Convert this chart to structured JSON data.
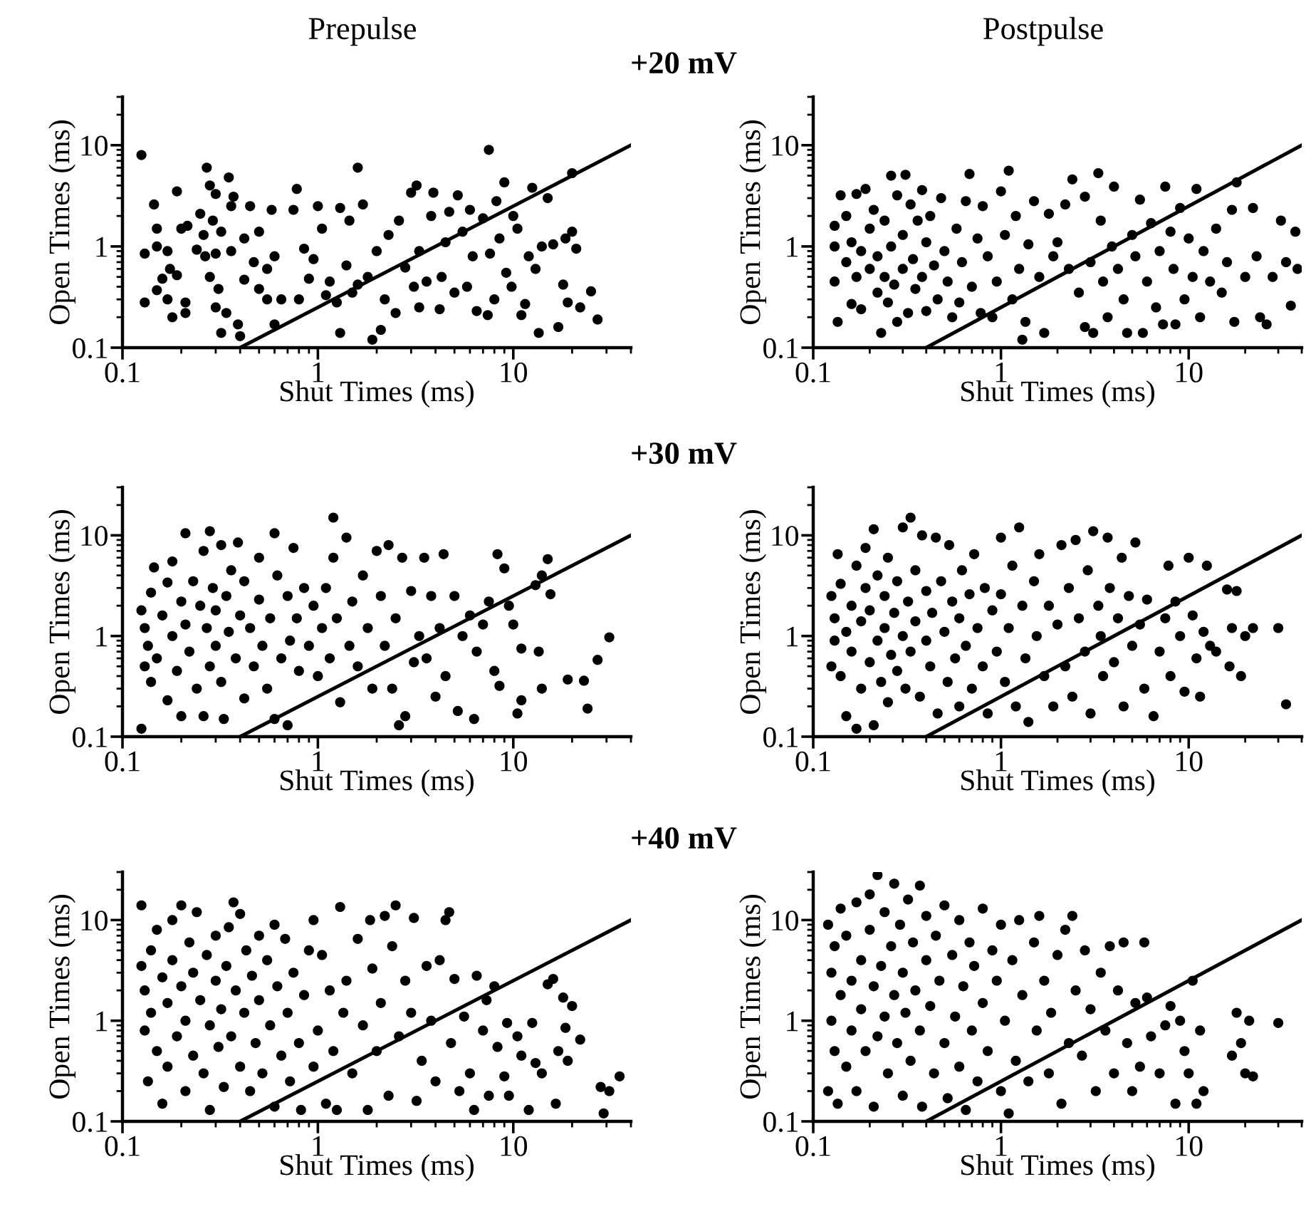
{
  "chart_data": [
    {
      "type": "scatter",
      "title": "Prepulse",
      "subtitle": "+20 mV",
      "xlabel": "Shut Times (ms)",
      "ylabel": "Open Times (ms)",
      "log": "xy",
      "xlim": [
        0.1,
        40
      ],
      "ylim": [
        0.1,
        30
      ],
      "xticks": [
        0.1,
        1,
        10
      ],
      "yticks": [
        0.1,
        1,
        10
      ],
      "series": [
        {
          "marker": "circle",
          "color": "#000000",
          "x": [
            0.125,
            0.13,
            0.13,
            0.145,
            0.15,
            0.15,
            0.15,
            0.16,
            0.17,
            0.17,
            0.175,
            0.18,
            0.19,
            0.19,
            0.2,
            0.21,
            0.21,
            0.215,
            0.24,
            0.25,
            0.26,
            0.265,
            0.27,
            0.28,
            0.28,
            0.29,
            0.3,
            0.3,
            0.3,
            0.31,
            0.32,
            0.32,
            0.34,
            0.35,
            0.36,
            0.36,
            0.37,
            0.39,
            0.4,
            0.42,
            0.42,
            0.45,
            0.47,
            0.5,
            0.5,
            0.55,
            0.55,
            0.58,
            0.6,
            0.6,
            0.65,
            0.75,
            0.78,
            0.8,
            0.85,
            0.9,
            0.95,
            1.0,
            1.05,
            1.1,
            1.15,
            1.25,
            1.3,
            1.3,
            1.4,
            1.45,
            1.5,
            1.6,
            1.6,
            1.7,
            1.8,
            1.9,
            2.0,
            2.1,
            2.2,
            2.3,
            2.5,
            2.6,
            2.8,
            3.0,
            3.1,
            3.2,
            3.3,
            3.3,
            3.6,
            3.8,
            3.9,
            4.2,
            4.3,
            4.5,
            4.7,
            5,
            5.2,
            5.5,
            5.8,
            6,
            6.2,
            6.5,
            7,
            7.4,
            7.5,
            7.6,
            8,
            8.2,
            8.5,
            9,
            9.2,
            9.8,
            10,
            10.5,
            11,
            11.5,
            12,
            12.5,
            13,
            13.5,
            14,
            15,
            16,
            17,
            18,
            18.5,
            19,
            20,
            20,
            21,
            22,
            25,
            27
          ],
          "values": [
            8,
            0.85,
            0.28,
            2.6,
            1.5,
            1.0,
            0.37,
            0.48,
            0.3,
            0.9,
            0.6,
            0.2,
            0.52,
            3.5,
            1.5,
            0.22,
            0.28,
            1.6,
            0.93,
            2.1,
            1.3,
            0.8,
            6,
            0.5,
            4,
            1.8,
            0.25,
            3.3,
            0.85,
            0.38,
            1.4,
            0.14,
            0.22,
            4.8,
            0.9,
            2.5,
            3.1,
            0.17,
            0.13,
            0.47,
            1.2,
            2.5,
            0.7,
            0.38,
            1.4,
            0.6,
            0.3,
            2.3,
            0.17,
            0.8,
            0.3,
            2.3,
            3.7,
            0.3,
            0.95,
            0.48,
            0.75,
            2.5,
            1.5,
            0.33,
            0.45,
            0.28,
            0.14,
            2.4,
            0.65,
            1.8,
            0.35,
            6,
            0.42,
            2.6,
            0.5,
            0.12,
            0.9,
            0.15,
            0.3,
            1.3,
            0.22,
            1.8,
            0.62,
            3.4,
            0.4,
            4,
            0.9,
            0.25,
            0.45,
            2,
            3.4,
            0.24,
            0.5,
            1.1,
            2.2,
            0.35,
            3.2,
            1.4,
            0.4,
            2.3,
            0.8,
            0.23,
            1.9,
            0.21,
            9,
            0.85,
            0.3,
            2.8,
            1.2,
            4.3,
            0.55,
            0.4,
            2,
            1.5,
            0.21,
            0.27,
            0.8,
            3.8,
            0.6,
            0.14,
            1,
            3,
            1.05,
            0.16,
            0.42,
            1.2,
            0.28,
            5.3,
            1.4,
            0.95,
            0.25,
            0.36,
            0.19
          ]
        },
        {
          "type": "line",
          "color": "#000000",
          "x": [
            0.4,
            40
          ],
          "values": [
            0.1,
            10
          ]
        }
      ]
    },
    {
      "type": "scatter",
      "title": "Postpulse",
      "xlabel": "Shut Times (ms)",
      "ylabel": "Open Times (ms)",
      "log": "xy",
      "xlim": [
        0.1,
        40
      ],
      "ylim": [
        0.1,
        30
      ],
      "xticks": [
        0.1,
        1,
        10
      ],
      "yticks": [
        0.1,
        1,
        10
      ],
      "series": [
        {
          "marker": "circle",
          "color": "#000000",
          "x": [
            0.13,
            0.13,
            0.13,
            0.135,
            0.14,
            0.15,
            0.15,
            0.16,
            0.16,
            0.17,
            0.17,
            0.18,
            0.18,
            0.19,
            0.2,
            0.2,
            0.21,
            0.22,
            0.22,
            0.23,
            0.24,
            0.24,
            0.25,
            0.26,
            0.26,
            0.27,
            0.28,
            0.28,
            0.3,
            0.3,
            0.31,
            0.32,
            0.33,
            0.34,
            0.35,
            0.36,
            0.38,
            0.38,
            0.4,
            0.4,
            0.42,
            0.44,
            0.46,
            0.48,
            0.5,
            0.52,
            0.55,
            0.58,
            0.6,
            0.62,
            0.65,
            0.68,
            0.7,
            0.75,
            0.78,
            0.8,
            0.85,
            0.9,
            0.95,
            1.0,
            1.05,
            1.1,
            1.15,
            1.2,
            1.25,
            1.3,
            1.35,
            1.4,
            1.5,
            1.6,
            1.7,
            1.8,
            1.9,
            2.0,
            2.2,
            2.3,
            2.4,
            2.6,
            2.8,
            2.8,
            3.0,
            3.1,
            3.3,
            3.4,
            3.5,
            3.7,
            3.9,
            4,
            4.2,
            4.5,
            4.7,
            5,
            5.2,
            5.5,
            5.7,
            6,
            6.3,
            6.7,
            7,
            7.3,
            7.5,
            8,
            8.3,
            8.5,
            9,
            9.5,
            10,
            10.5,
            11,
            11.5,
            12,
            13,
            14,
            15,
            16,
            17,
            17.5,
            18,
            20,
            22,
            23,
            24,
            26,
            28,
            31,
            33,
            35,
            37,
            38
          ],
          "values": [
            1.6,
            0.45,
            1.0,
            0.18,
            3.2,
            2,
            0.7,
            0.27,
            1.1,
            3.3,
            0.5,
            0.9,
            0.24,
            3.7,
            1.5,
            0.6,
            2.3,
            0.35,
            0.8,
            0.14,
            1.8,
            0.5,
            0.28,
            5,
            1.0,
            0.42,
            0.18,
            3.2,
            0.6,
            1.3,
            5.1,
            0.22,
            2.6,
            0.75,
            0.38,
            1.8,
            3.6,
            0.5,
            0.23,
            1.1,
            2,
            0.65,
            0.3,
            3,
            0.9,
            0.45,
            0.2,
            1.5,
            0.28,
            0.7,
            2.8,
            5.2,
            0.4,
            1.2,
            0.22,
            2.5,
            0.8,
            0.2,
            0.45,
            3.5,
            1.3,
            5.6,
            0.3,
            2,
            0.6,
            0.12,
            0.18,
            1.05,
            2.8,
            0.5,
            0.14,
            2.1,
            0.8,
            1.1,
            2.6,
            0.6,
            4.6,
            0.35,
            3.1,
            0.16,
            0.7,
            0.14,
            5.3,
            1.8,
            0.45,
            0.2,
            1.0,
            3.9,
            0.6,
            0.3,
            0.14,
            1.3,
            0.8,
            2.9,
            0.14,
            0.45,
            1.7,
            0.25,
            0.9,
            0.17,
            3.9,
            1.4,
            0.6,
            0.17,
            2.4,
            0.3,
            1.2,
            0.5,
            3.7,
            0.2,
            0.9,
            0.45,
            1.5,
            0.35,
            0.7,
            2.3,
            0.18,
            4.3,
            0.5,
            2.4,
            0.8,
            0.2,
            0.17,
            0.5,
            1.8,
            0.7,
            0.26,
            1.4,
            0.6
          ]
        },
        {
          "type": "line",
          "color": "#000000",
          "x": [
            0.4,
            40
          ],
          "values": [
            0.1,
            10
          ]
        }
      ]
    },
    {
      "type": "scatter",
      "subtitle": "+30 mV",
      "xlabel": "Shut Times (ms)",
      "ylabel": "Open Times (ms)",
      "log": "xy",
      "xlim": [
        0.1,
        40
      ],
      "ylim": [
        0.1,
        30
      ],
      "xticks": [
        0.1,
        1,
        10
      ],
      "yticks": [
        0.1,
        1,
        10
      ],
      "series": [
        {
          "marker": "circle",
          "color": "#000000",
          "x": [
            0.125,
            0.125,
            0.13,
            0.13,
            0.135,
            0.14,
            0.14,
            0.145,
            0.15,
            0.16,
            0.17,
            0.17,
            0.18,
            0.18,
            0.19,
            0.2,
            0.2,
            0.21,
            0.21,
            0.22,
            0.23,
            0.24,
            0.25,
            0.26,
            0.26,
            0.27,
            0.28,
            0.28,
            0.29,
            0.3,
            0.3,
            0.32,
            0.32,
            0.33,
            0.34,
            0.35,
            0.36,
            0.38,
            0.39,
            0.4,
            0.42,
            0.42,
            0.45,
            0.47,
            0.5,
            0.5,
            0.52,
            0.55,
            0.57,
            0.6,
            0.6,
            0.62,
            0.65,
            0.7,
            0.7,
            0.72,
            0.75,
            0.78,
            0.8,
            0.85,
            0.9,
            0.95,
            1.0,
            1.05,
            1.1,
            1.15,
            1.2,
            1.2,
            1.25,
            1.3,
            1.4,
            1.45,
            1.5,
            1.6,
            1.7,
            1.8,
            1.9,
            2.0,
            2.1,
            2.2,
            2.3,
            2.4,
            2.5,
            2.6,
            2.7,
            2.8,
            3.0,
            3.1,
            3.3,
            3.5,
            3.6,
            3.8,
            4.0,
            4.2,
            4.4,
            4.5,
            5,
            5.2,
            5.5,
            6,
            6.3,
            6.5,
            7,
            7.5,
            8,
            8.3,
            8.5,
            9,
            9.5,
            10,
            10.5,
            11,
            11,
            13,
            13.5,
            14,
            14,
            15,
            15.5,
            19,
            23,
            24,
            27,
            31
          ],
          "values": [
            1.8,
            0.12,
            0.5,
            1.2,
            0.8,
            2.7,
            0.35,
            4.8,
            0.6,
            1.6,
            0.23,
            3.4,
            1.0,
            5.5,
            0.45,
            2.2,
            0.16,
            1.3,
            10.5,
            0.7,
            3.5,
            0.3,
            2,
            0.16,
            7,
            1.2,
            11,
            0.5,
            3,
            0.8,
            1.8,
            0.35,
            8,
            0.15,
            2.5,
            1.1,
            4.5,
            0.6,
            8.5,
            1.6,
            0.24,
            3.5,
            1.2,
            0.5,
            2.3,
            6,
            0.8,
            0.3,
            1.5,
            10.5,
            0.15,
            4,
            0.6,
            2.5,
            0.13,
            0.9,
            7.5,
            1.5,
            0.45,
            3,
            0.8,
            2,
            0.4,
            1.2,
            3,
            0.6,
            15,
            6,
            1.5,
            0.22,
            9.5,
            0.8,
            2.2,
            0.5,
            4,
            1.2,
            0.3,
            7,
            2.5,
            0.8,
            8,
            0.3,
            1.5,
            0.13,
            6,
            0.16,
            2.8,
            0.55,
            1.0,
            6,
            0.6,
            2.5,
            0.25,
            1.2,
            6.5,
            0.4,
            2.5,
            0.18,
            1.0,
            1.6,
            0.15,
            0.7,
            1.3,
            2.2,
            0.45,
            6.5,
            0.32,
            4.7,
            2,
            1.3,
            0.17,
            0.23,
            0.75,
            3.2,
            0.7,
            4,
            0.3,
            5.8,
            2.6,
            0.37,
            0.36,
            0.19,
            0.58,
            0.97
          ]
        },
        {
          "type": "line",
          "color": "#000000",
          "x": [
            0.4,
            40
          ],
          "values": [
            0.1,
            10
          ]
        }
      ]
    },
    {
      "type": "scatter",
      "xlabel": "Shut Times (ms)",
      "ylabel": "Open Times (ms)",
      "log": "xy",
      "xlim": [
        0.1,
        40
      ],
      "ylim": [
        0.1,
        30
      ],
      "xticks": [
        0.1,
        1,
        10
      ],
      "yticks": [
        0.1,
        1,
        10
      ],
      "series": [
        {
          "marker": "circle",
          "color": "#000000",
          "x": [
            0.125,
            0.125,
            0.13,
            0.13,
            0.135,
            0.14,
            0.14,
            0.15,
            0.15,
            0.16,
            0.16,
            0.17,
            0.17,
            0.18,
            0.18,
            0.19,
            0.19,
            0.2,
            0.2,
            0.21,
            0.21,
            0.22,
            0.22,
            0.23,
            0.24,
            0.24,
            0.25,
            0.25,
            0.26,
            0.27,
            0.28,
            0.28,
            0.3,
            0.3,
            0.31,
            0.32,
            0.33,
            0.33,
            0.35,
            0.35,
            0.37,
            0.38,
            0.4,
            0.4,
            0.42,
            0.43,
            0.45,
            0.46,
            0.48,
            0.5,
            0.52,
            0.53,
            0.55,
            0.57,
            0.6,
            0.6,
            0.62,
            0.65,
            0.68,
            0.7,
            0.72,
            0.75,
            0.8,
            0.82,
            0.85,
            0.9,
            0.95,
            1.0,
            1.0,
            1.05,
            1.1,
            1.15,
            1.2,
            1.25,
            1.3,
            1.35,
            1.4,
            1.5,
            1.55,
            1.6,
            1.7,
            1.8,
            1.9,
            2.0,
            2.1,
            2.2,
            2.3,
            2.4,
            2.5,
            2.6,
            2.8,
            2.9,
            3.0,
            3.1,
            3.3,
            3.4,
            3.5,
            3.7,
            3.8,
            4,
            4.2,
            4.4,
            4.5,
            4.8,
            5,
            5.2,
            5.5,
            5.8,
            6,
            6.5,
            7,
            7.5,
            7.8,
            8,
            8.5,
            9,
            9.5,
            10,
            10.5,
            11,
            11.5,
            12,
            12.5,
            13,
            14,
            16,
            16.5,
            17,
            18,
            19,
            20,
            22,
            30,
            33
          ],
          "values": [
            2.5,
            0.5,
            1.5,
            0.9,
            6.5,
            0.4,
            3.3,
            1.1,
            0.16,
            2,
            0.7,
            5,
            0.12,
            1.4,
            0.3,
            3,
            7.5,
            0.55,
            1.8,
            11.5,
            0.13,
            0.9,
            4,
            0.35,
            2.5,
            1.2,
            6,
            0.22,
            0.65,
            1.7,
            3.5,
            0.45,
            1.0,
            12,
            0.3,
            2.2,
            15,
            0.7,
            4.5,
            1.4,
            0.25,
            10,
            0.9,
            2.8,
            0.5,
            1.7,
            9.5,
            0.17,
            3.5,
            1.1,
            0.35,
            8,
            2.2,
            0.6,
            1.5,
            0.2,
            4.5,
            0.8,
            2.6,
            0.3,
            6.5,
            1.2,
            0.5,
            3,
            0.17,
            1.8,
            0.7,
            9.5,
            2.6,
            0.35,
            1.2,
            5,
            0.2,
            12,
            2,
            0.6,
            0.14,
            3.5,
            1.0,
            6.5,
            0.4,
            2,
            0.2,
            1.3,
            8,
            0.5,
            3,
            0.25,
            9,
            1.5,
            0.7,
            4.5,
            0.17,
            11,
            2,
            1.0,
            0.4,
            9.5,
            3,
            0.55,
            1.5,
            6,
            0.2,
            2.5,
            0.8,
            8.5,
            1.3,
            0.3,
            2.3,
            0.16,
            0.7,
            1.5,
            5,
            0.4,
            2.2,
            1.0,
            0.28,
            6,
            1.6,
            0.6,
            0.25,
            1.1,
            5,
            0.8,
            0.7,
            2.9,
            0.5,
            1.2,
            2.8,
            0.4,
            1,
            1.2,
            1.2,
            0.21
          ]
        },
        {
          "type": "line",
          "color": "#000000",
          "x": [
            0.4,
            40
          ],
          "values": [
            0.1,
            10
          ]
        }
      ]
    },
    {
      "type": "scatter",
      "subtitle": "+40 mV",
      "xlabel": "Shut Times (ms)",
      "ylabel": "Open Times (ms)",
      "log": "xy",
      "xlim": [
        0.1,
        40
      ],
      "ylim": [
        0.1,
        30
      ],
      "xticks": [
        0.1,
        1,
        10
      ],
      "yticks": [
        0.1,
        1,
        10
      ],
      "series": [
        {
          "marker": "circle",
          "color": "#000000",
          "x": [
            0.125,
            0.125,
            0.13,
            0.13,
            0.135,
            0.14,
            0.14,
            0.15,
            0.15,
            0.16,
            0.16,
            0.17,
            0.17,
            0.18,
            0.18,
            0.19,
            0.2,
            0.2,
            0.21,
            0.21,
            0.22,
            0.23,
            0.23,
            0.24,
            0.25,
            0.26,
            0.27,
            0.28,
            0.28,
            0.3,
            0.3,
            0.31,
            0.32,
            0.33,
            0.34,
            0.35,
            0.36,
            0.37,
            0.38,
            0.4,
            0.4,
            0.42,
            0.43,
            0.45,
            0.46,
            0.48,
            0.5,
            0.5,
            0.52,
            0.55,
            0.57,
            0.6,
            0.6,
            0.62,
            0.65,
            0.68,
            0.7,
            0.72,
            0.75,
            0.8,
            0.82,
            0.85,
            0.9,
            0.95,
            0.95,
            1.0,
            1.05,
            1.1,
            1.15,
            1.2,
            1.25,
            1.3,
            1.35,
            1.4,
            1.5,
            1.6,
            1.7,
            1.8,
            1.85,
            1.9,
            2.0,
            2.1,
            2.2,
            2.3,
            2.4,
            2.5,
            2.6,
            2.8,
            3.0,
            3.1,
            3.2,
            3.4,
            3.6,
            3.8,
            4.0,
            4.2,
            4.5,
            4.7,
            4.8,
            5,
            5.3,
            5.6,
            6,
            6.3,
            6.5,
            7,
            7.3,
            7.5,
            8,
            8.3,
            9,
            9.3,
            9.5,
            10.5,
            11,
            12,
            12.5,
            13,
            14,
            15,
            16,
            16.5,
            17,
            18,
            18.5,
            19,
            20,
            22,
            28,
            29,
            31,
            35
          ],
          "values": [
            14,
            3.5,
            0.8,
            2,
            0.25,
            5,
            1.2,
            0.5,
            8,
            0.15,
            2.7,
            0.35,
            1.5,
            10,
            4,
            0.7,
            14,
            2.2,
            0.2,
            1.0,
            6,
            0.45,
            3,
            12,
            1.6,
            0.3,
            4.5,
            0.9,
            0.13,
            2.5,
            7,
            0.55,
            1.3,
            0.22,
            3.5,
            8.5,
            0.7,
            15,
            2,
            0.35,
            11.5,
            1.2,
            5,
            0.2,
            2.8,
            0.6,
            7,
            1.6,
            0.3,
            4,
            0.9,
            9,
            0.14,
            2.2,
            0.45,
            6.5,
            1.2,
            0.25,
            3,
            0.6,
            0.13,
            1.8,
            5,
            10,
            0.35,
            0.8,
            4.5,
            0.15,
            2,
            0.5,
            0.13,
            13.5,
            1.2,
            2.5,
            0.3,
            6.5,
            0.9,
            0.13,
            10,
            3.3,
            0.5,
            1.5,
            11,
            0.18,
            5.5,
            14,
            0.7,
            2.5,
            1.2,
            10.5,
            0.16,
            0.4,
            3.5,
            1.0,
            0.25,
            4,
            10,
            12,
            0.6,
            2.6,
            0.2,
            1.1,
            0.3,
            0.13,
            2.8,
            0.8,
            1.6,
            0.18,
            2.2,
            0.55,
            0.28,
            0.95,
            0.18,
            0.7,
            0.45,
            0.13,
            0.95,
            0.38,
            0.3,
            2.3,
            2.6,
            0.15,
            0.5,
            1.7,
            0.85,
            0.4,
            1.4,
            0.65,
            0.22,
            0.12,
            0.2,
            0.28
          ]
        },
        {
          "type": "line",
          "color": "#000000",
          "x": [
            0.4,
            40
          ],
          "values": [
            0.1,
            10
          ]
        }
      ]
    },
    {
      "type": "scatter",
      "xlabel": "Shut Times (ms)",
      "ylabel": "Open Times (ms)",
      "log": "xy",
      "xlim": [
        0.1,
        40
      ],
      "ylim": [
        0.1,
        30
      ],
      "xticks": [
        0.1,
        1,
        10
      ],
      "yticks": [
        0.1,
        1,
        10
      ],
      "series": [
        {
          "marker": "circle",
          "color": "#000000",
          "x": [
            0.12,
            0.12,
            0.125,
            0.125,
            0.13,
            0.13,
            0.135,
            0.14,
            0.14,
            0.15,
            0.15,
            0.16,
            0.16,
            0.17,
            0.17,
            0.18,
            0.18,
            0.19,
            0.2,
            0.2,
            0.21,
            0.21,
            0.22,
            0.22,
            0.23,
            0.24,
            0.24,
            0.25,
            0.26,
            0.27,
            0.27,
            0.28,
            0.29,
            0.3,
            0.3,
            0.31,
            0.32,
            0.33,
            0.34,
            0.35,
            0.37,
            0.37,
            0.38,
            0.4,
            0.4,
            0.42,
            0.44,
            0.45,
            0.47,
            0.5,
            0.5,
            0.52,
            0.55,
            0.57,
            0.6,
            0.6,
            0.63,
            0.65,
            0.68,
            0.7,
            0.72,
            0.75,
            0.8,
            0.8,
            0.85,
            0.9,
            0.95,
            1.0,
            1.0,
            1.05,
            1.1,
            1.15,
            1.2,
            1.25,
            1.3,
            1.4,
            1.5,
            1.55,
            1.6,
            1.7,
            1.8,
            1.85,
            2.0,
            2.1,
            2.2,
            2.3,
            2.4,
            2.5,
            2.7,
            2.8,
            3.0,
            3.2,
            3.4,
            3.6,
            3.8,
            4,
            4.2,
            4.5,
            4.7,
            5,
            5.2,
            5.5,
            5.8,
            6,
            6.3,
            7,
            7.5,
            8,
            8.5,
            9,
            9.5,
            10,
            10.5,
            11,
            11.5,
            12,
            17,
            18,
            19,
            20,
            21,
            22,
            30
          ],
          "values": [
            9,
            0.2,
            3,
            1.0,
            0.5,
            5.5,
            0.15,
            1.8,
            13,
            0.35,
            7,
            2.5,
            0.8,
            15,
            0.2,
            4,
            1.3,
            0.5,
            18,
            8,
            2.2,
            0.14,
            0.7,
            28,
            3.5,
            1.1,
            12,
            0.3,
            5.5,
            23,
            1.8,
            0.6,
            9,
            0.18,
            3,
            1.2,
            16,
            0.4,
            6,
            2,
            22,
            0.8,
            0.14,
            4,
            11,
            1.4,
            0.3,
            7,
            2.5,
            14,
            0.6,
            0.17,
            4.5,
            1.1,
            10,
            0.35,
            2.2,
            0.13,
            6,
            0.8,
            3.5,
            0.25,
            13,
            1.5,
            0.5,
            5,
            2.5,
            0.2,
            9,
            1.0,
            0.12,
            4,
            0.4,
            10,
            1.8,
            0.25,
            6,
            0.8,
            11,
            2.5,
            0.3,
            1.2,
            4.5,
            0.15,
            8,
            0.6,
            11,
            2,
            0.45,
            5,
            1.3,
            0.2,
            3,
            0.8,
            5.5,
            0.3,
            2,
            6,
            0.6,
            0.2,
            1.5,
            0.35,
            6,
            1.7,
            0.7,
            0.3,
            0.9,
            1.4,
            0.15,
            1.0,
            0.5,
            0.3,
            2.5,
            0.15,
            0.8,
            0.2,
            0.45,
            1.2,
            0.6,
            0.3,
            1.0,
            0.28,
            0.95
          ]
        },
        {
          "type": "line",
          "color": "#000000",
          "x": [
            0.4,
            40
          ],
          "values": [
            0.1,
            10
          ]
        }
      ]
    }
  ]
}
